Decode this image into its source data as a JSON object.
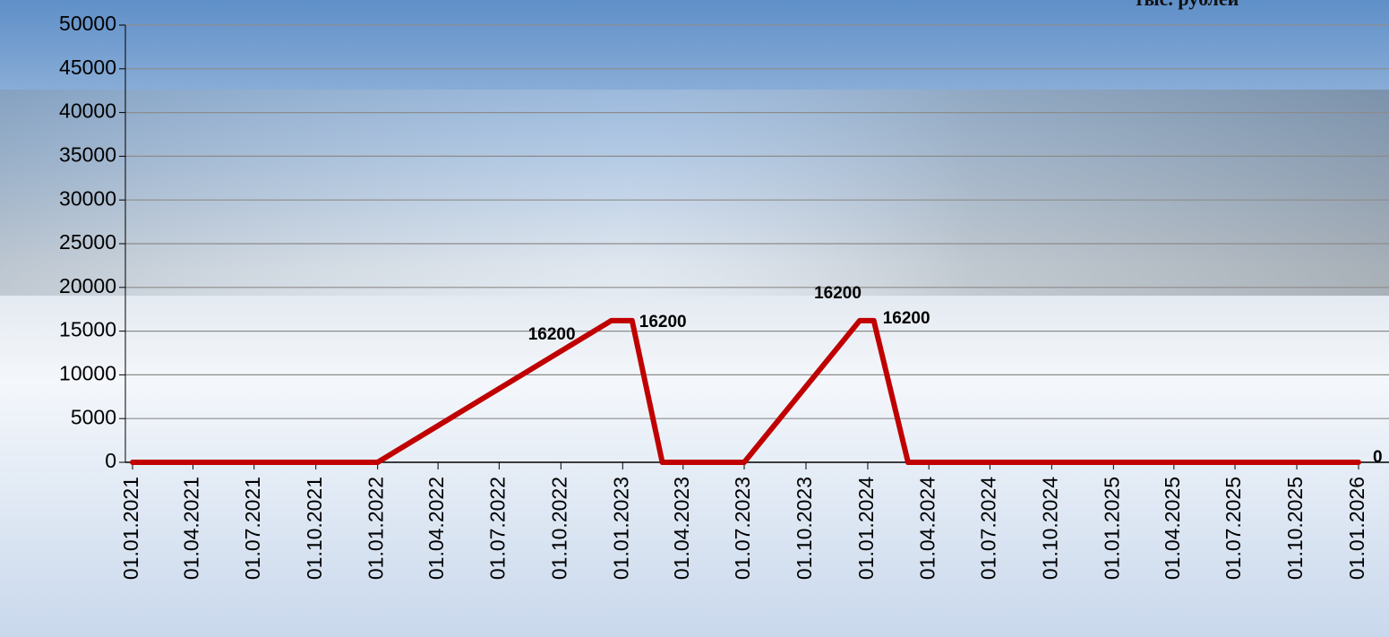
{
  "chart_data": {
    "type": "line",
    "subtitle": "тыс. рублей",
    "x": [
      "01.01.2021",
      "01.01.2022",
      "15.12.2022",
      "15.01.2023",
      "01.03.2023",
      "01.07.2023",
      "20.12.2023",
      "10.01.2024",
      "01.03.2024",
      "01.01.2026"
    ],
    "values": [
      0,
      0,
      16200,
      16200,
      0,
      0,
      16200,
      16200,
      0,
      0
    ],
    "value_labels": [
      null,
      null,
      "16200",
      "16200",
      null,
      null,
      "16200",
      "16200",
      null,
      "0"
    ],
    "color": "#c00000",
    "xlim": [
      "01.01.2021",
      "01.01.2026"
    ],
    "xticks": [
      "01.01.2021",
      "01.04.2021",
      "01.07.2021",
      "01.10.2021",
      "01.01.2022",
      "01.04.2022",
      "01.07.2022",
      "01.10.2022",
      "01.01.2023",
      "01.04.2023",
      "01.07.2023",
      "01.10.2023",
      "01.01.2024",
      "01.04.2024",
      "01.07.2024",
      "01.10.2024",
      "01.01.2025",
      "01.04.2025",
      "01.07.2025",
      "01.10.2025",
      "01.01.2026"
    ],
    "ylim": [
      0,
      50000
    ],
    "yticks": [
      0,
      5000,
      10000,
      15000,
      20000,
      25000,
      30000,
      35000,
      40000,
      45000,
      50000
    ],
    "grid": true
  }
}
